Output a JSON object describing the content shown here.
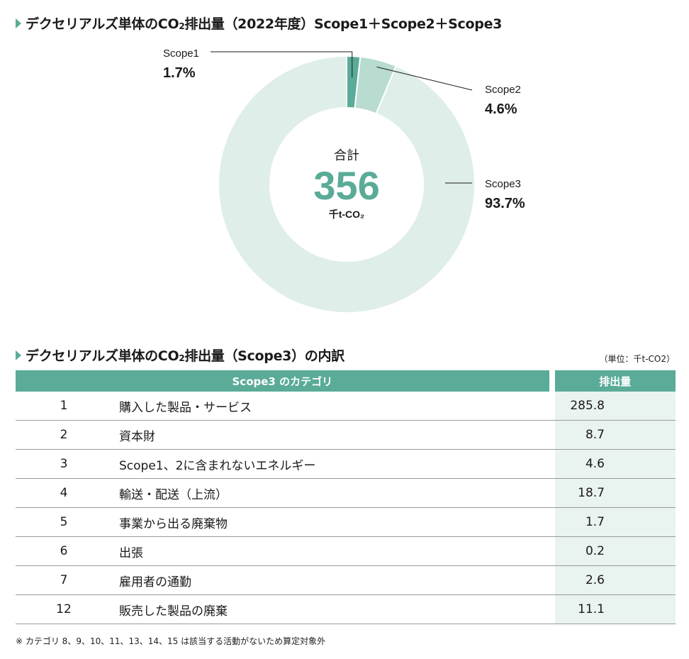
{
  "heading1": {
    "text": "デクセリアルズ単体のCO",
    "sub": "2",
    "tail": "排出量（2022年度）Scope1＋Scope2＋Scope3"
  },
  "chart_data": {
    "type": "pie",
    "donut": true,
    "labels": [
      "Scope1",
      "Scope2",
      "Scope3"
    ],
    "values": [
      1.7,
      4.6,
      93.7
    ],
    "value_labels": [
      "1.7%",
      "4.6%",
      "93.7%"
    ],
    "colors": [
      "#5aab98",
      "#b8dccf",
      "#dfeee8"
    ],
    "center": {
      "label": "合計",
      "value": "356",
      "unit": "千t-CO₂"
    }
  },
  "heading2": {
    "text": "デクセリアルズ単体のCO",
    "sub": "2",
    "tail": "排出量（Scope3）の内訳"
  },
  "unit_note": "（単位：千t-CO2）",
  "table": {
    "header_category": "Scope3 のカテゴリ",
    "header_value": "排出量",
    "rows": [
      {
        "num": "1",
        "name": "購入した製品・サービス",
        "value": "285.8"
      },
      {
        "num": "2",
        "name": "資本財",
        "value": "8.7"
      },
      {
        "num": "3",
        "name": "Scope1、2に含まれないエネルギー",
        "value": "4.6"
      },
      {
        "num": "4",
        "name": "輸送・配送（上流）",
        "value": "18.7"
      },
      {
        "num": "5",
        "name": "事業から出る廃棄物",
        "value": "1.7"
      },
      {
        "num": "6",
        "name": "出張",
        "value": "0.2"
      },
      {
        "num": "7",
        "name": "雇用者の通勤",
        "value": "2.6"
      },
      {
        "num": "12",
        "name": "販売した製品の廃棄",
        "value": "11.1"
      }
    ]
  },
  "footnote": "※ カテゴリ 8、9、10、11、13、14、15 は該当する活動がないため算定対象外"
}
